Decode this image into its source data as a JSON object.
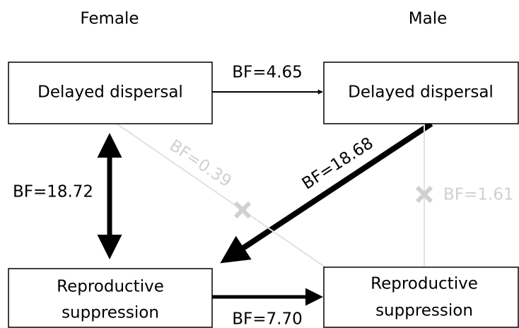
{
  "columns": [
    "Female",
    "Male"
  ],
  "nodes": [
    {
      "label_lines": [
        "Delayed dispersal"
      ]
    },
    {
      "label_lines": [
        "Delayed dispersal"
      ]
    },
    {
      "label_lines": [
        "Reproductive",
        "suppression"
      ]
    },
    {
      "label_lines": [
        "Reproductive",
        "suppression"
      ]
    }
  ],
  "edges": [
    {
      "label": "BF=4.65"
    },
    {
      "label": "BF=18.72"
    },
    {
      "label": "BF=18.68"
    },
    {
      "label": "BF=0.39"
    },
    {
      "label": "BF=1.61"
    },
    {
      "label": "BF=7.70"
    }
  ]
}
